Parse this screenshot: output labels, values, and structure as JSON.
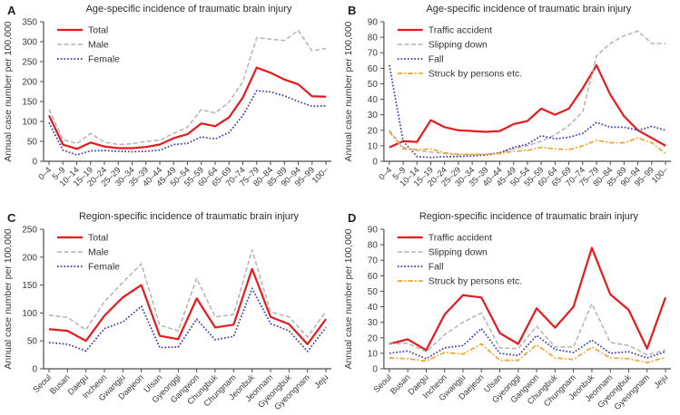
{
  "chart_data": [
    {
      "id": "A",
      "type": "line",
      "title": "Age-specific incidence of traumatic brain injury",
      "ylabel": "Annual case number per 100,000",
      "ylim": [
        0,
        350
      ],
      "ytick_step": 50,
      "grid": false,
      "legend_position": "upper left",
      "categories": [
        "0–4",
        "5–9",
        "10–14",
        "15–19",
        "20–24",
        "25–29",
        "30–34",
        "35–39",
        "40–44",
        "45–49",
        "50–54",
        "55–59",
        "60–64",
        "65–69",
        "70–74",
        "75–79",
        "80–84",
        "85–89",
        "90–94",
        "95–99",
        "100–"
      ],
      "series": [
        {
          "name": "Total",
          "color": "#e8191c",
          "style": "solid",
          "values": [
            115,
            42,
            31,
            47,
            37,
            33,
            33,
            36,
            42,
            58,
            68,
            95,
            88,
            110,
            160,
            235,
            222,
            205,
            193,
            163,
            162
          ]
        },
        {
          "name": "Male",
          "color": "#b3b3b3",
          "style": "dashed",
          "values": [
            130,
            55,
            44,
            70,
            48,
            42,
            44,
            50,
            53,
            70,
            85,
            130,
            121,
            148,
            200,
            310,
            306,
            303,
            328,
            277,
            283
          ]
        },
        {
          "name": "Female",
          "color": "#3a3aae",
          "style": "dotted",
          "values": [
            97,
            28,
            16,
            26,
            27,
            25,
            24,
            25,
            28,
            42,
            45,
            61,
            56,
            72,
            115,
            177,
            174,
            164,
            150,
            138,
            139
          ]
        }
      ]
    },
    {
      "id": "B",
      "type": "line",
      "title": "Age-specific incidence of traumatic brain injury",
      "ylabel": "Annual case number per 100,000",
      "ylim": [
        0,
        90
      ],
      "ytick_step": 10,
      "grid": false,
      "legend_position": "upper left",
      "categories": [
        "0–4",
        "5–9",
        "10–14",
        "15–19",
        "20–24",
        "25–29",
        "30–34",
        "35–39",
        "40–44",
        "45–49",
        "50–54",
        "55–59",
        "60–64",
        "65–69",
        "70–74",
        "75–79",
        "80–84",
        "85–89",
        "90–94",
        "95–99",
        "100–"
      ],
      "series": [
        {
          "name": "Traffic accident",
          "color": "#e8191c",
          "style": "solid",
          "values": [
            9,
            13,
            12.5,
            26.5,
            22,
            20,
            19.5,
            19,
            19.5,
            24,
            26,
            34,
            30,
            34,
            47,
            62,
            43,
            29,
            20,
            15,
            10
          ]
        },
        {
          "name": "Slipping down",
          "color": "#b3b3b3",
          "style": "dashed",
          "values": [
            20,
            9,
            7,
            6,
            5,
            4,
            4.5,
            4.5,
            5.5,
            8,
            10,
            13,
            17,
            23,
            32,
            68,
            76,
            81,
            84,
            76,
            76
          ]
        },
        {
          "name": "Fall",
          "color": "#3a3aae",
          "style": "dotted",
          "values": [
            62,
            13,
            3,
            2.5,
            3,
            3,
            3.5,
            4,
            5.5,
            9,
            11,
            16.5,
            14.5,
            15.5,
            18,
            25,
            22,
            22,
            20,
            22.5,
            20
          ]
        },
        {
          "name": "Struck by persons etc.",
          "color": "#f7a229",
          "style": "dashdot",
          "values": [
            19,
            8,
            7.5,
            8,
            5.5,
            4.5,
            4.5,
            4.5,
            5,
            6.5,
            7,
            9,
            8,
            7.5,
            10,
            13.5,
            12,
            12,
            15,
            12,
            5
          ]
        }
      ]
    },
    {
      "id": "C",
      "type": "line",
      "title": "Region-specific incidence of traumatic brain injury",
      "ylabel": "Annual case number per 100,000",
      "ylim": [
        0,
        250
      ],
      "ytick_step": 50,
      "grid": false,
      "legend_position": "upper left",
      "categories": [
        "Seoul",
        "Busan",
        "Daegu",
        "Incheon",
        "Gwangju",
        "Daejeon",
        "Ulsan",
        "Gyeonggi",
        "Gangwon",
        "Chungbuk",
        "Chungnam",
        "Jeonbuk",
        "Jeonnam",
        "Gyeongbuk",
        "Gyeongnam",
        "Jeju"
      ],
      "series": [
        {
          "name": "Total",
          "color": "#e8191c",
          "style": "solid",
          "values": [
            71,
            68,
            50,
            95,
            128,
            150,
            59,
            53,
            126,
            74,
            79,
            179,
            93,
            80,
            44,
            89
          ]
        },
        {
          "name": "Male",
          "color": "#b3b3b3",
          "style": "dashed",
          "values": [
            96,
            92,
            70,
            120,
            155,
            188,
            78,
            68,
            162,
            93,
            97,
            213,
            102,
            93,
            57,
            103
          ]
        },
        {
          "name": "Female",
          "color": "#3a3aae",
          "style": "dotted",
          "values": [
            47,
            44,
            32,
            72,
            84,
            112,
            38,
            39,
            89,
            52,
            58,
            144,
            81,
            68,
            31,
            74
          ]
        }
      ]
    },
    {
      "id": "D",
      "type": "line",
      "title": "Region-specific incidence of traumatic brain injury",
      "ylabel": "Annual case number per 100,000",
      "ylim": [
        0,
        90
      ],
      "ytick_step": 10,
      "grid": false,
      "legend_position": "upper left",
      "categories": [
        "Seoul",
        "Busan",
        "Daegu",
        "Incheon",
        "Gwangju",
        "Daejeon",
        "Ulsan",
        "Gyeonggi",
        "Gangwon",
        "Chungbuk",
        "Chungnam",
        "Jeonbuk",
        "Jeonnam",
        "Gyeongbuk",
        "Gyeongnam",
        "Jeju"
      ],
      "series": [
        {
          "name": "Traffic accident",
          "color": "#e8191c",
          "style": "solid",
          "values": [
            16,
            19,
            12,
            35,
            47.5,
            46,
            23,
            16,
            39,
            26.5,
            40,
            78,
            48,
            38,
            13,
            46
          ]
        },
        {
          "name": "Slipping down",
          "color": "#b3b3b3",
          "style": "dashed",
          "values": [
            16,
            16.5,
            11,
            22,
            30,
            36,
            13.5,
            13,
            27.5,
            14,
            14,
            42,
            17,
            15,
            9,
            12
          ]
        },
        {
          "name": "Fall",
          "color": "#3a3aae",
          "style": "dotted",
          "values": [
            10,
            11.5,
            6.5,
            13.5,
            15,
            26,
            10,
            8.5,
            21.5,
            12.5,
            10.5,
            18.5,
            10,
            11,
            7,
            11
          ]
        },
        {
          "name": "Struck by persons etc.",
          "color": "#f7a229",
          "style": "dashdot",
          "values": [
            7,
            6.5,
            5,
            10.5,
            9.5,
            16,
            5.5,
            5.5,
            15.5,
            7,
            6,
            14,
            7,
            6.5,
            4,
            7.5
          ]
        }
      ]
    }
  ]
}
